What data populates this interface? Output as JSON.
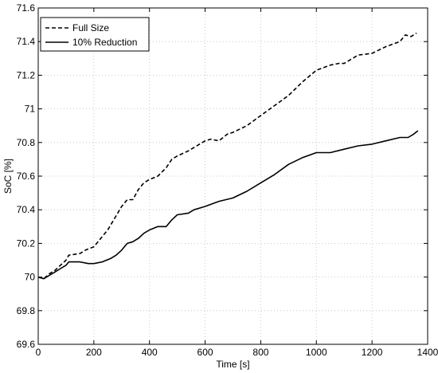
{
  "chart_data": {
    "type": "line",
    "title": "",
    "xlabel": "Time [s]",
    "ylabel": "SoC [%]",
    "xlim": [
      0,
      1400
    ],
    "ylim": [
      69.6,
      71.6
    ],
    "xticks": [
      0,
      200,
      400,
      600,
      800,
      1000,
      1200,
      1400
    ],
    "yticks": [
      69.6,
      69.8,
      70,
      70.2,
      70.4,
      70.6,
      70.8,
      71,
      71.2,
      71.4,
      71.6
    ],
    "xtick_labels": [
      "0",
      "200",
      "400",
      "600",
      "800",
      "1000",
      "1200",
      "1400"
    ],
    "ytick_labels": [
      "69.6",
      "69.8",
      "70",
      "70.2",
      "70.4",
      "70.6",
      "70.8",
      "71",
      "71.2",
      "71.4",
      "71.6"
    ],
    "grid": true,
    "legend": "top-left",
    "series": [
      {
        "name": "Full Size",
        "style": "dashed",
        "color": "#000000",
        "x": [
          0,
          20,
          40,
          60,
          80,
          100,
          110,
          150,
          170,
          200,
          250,
          300,
          320,
          340,
          360,
          380,
          400,
          430,
          460,
          480,
          500,
          540,
          560,
          600,
          620,
          650,
          680,
          700,
          750,
          800,
          850,
          900,
          950,
          1000,
          1050,
          1080,
          1100,
          1150,
          1200,
          1250,
          1300,
          1320,
          1340,
          1360
        ],
        "y": [
          70.0,
          69.99,
          70.02,
          70.04,
          70.07,
          70.1,
          70.13,
          70.14,
          70.16,
          70.18,
          70.28,
          70.42,
          70.46,
          70.46,
          70.52,
          70.56,
          70.58,
          70.6,
          70.65,
          70.7,
          70.72,
          70.75,
          70.77,
          70.81,
          70.82,
          70.81,
          70.85,
          70.86,
          70.9,
          70.96,
          71.02,
          71.08,
          71.16,
          71.23,
          71.26,
          71.27,
          71.27,
          71.32,
          71.33,
          71.37,
          71.4,
          71.44,
          71.43,
          71.45
        ]
      },
      {
        "name": "10% Reduction",
        "style": "solid",
        "color": "#000000",
        "x": [
          0,
          20,
          40,
          60,
          80,
          100,
          110,
          150,
          180,
          200,
          230,
          260,
          280,
          300,
          320,
          340,
          360,
          380,
          400,
          430,
          460,
          480,
          500,
          540,
          560,
          600,
          650,
          700,
          750,
          800,
          850,
          900,
          950,
          1000,
          1050,
          1100,
          1150,
          1200,
          1250,
          1300,
          1330,
          1350,
          1365
        ],
        "y": [
          70.0,
          69.99,
          70.01,
          70.03,
          70.05,
          70.07,
          70.09,
          70.09,
          70.08,
          70.08,
          70.09,
          70.11,
          70.13,
          70.16,
          70.2,
          70.21,
          70.23,
          70.26,
          70.28,
          70.3,
          70.3,
          70.34,
          70.37,
          70.38,
          70.4,
          70.42,
          70.45,
          70.47,
          70.51,
          70.56,
          70.61,
          70.67,
          70.71,
          70.74,
          70.74,
          70.76,
          70.78,
          70.79,
          70.81,
          70.83,
          70.83,
          70.85,
          70.87
        ]
      }
    ]
  }
}
